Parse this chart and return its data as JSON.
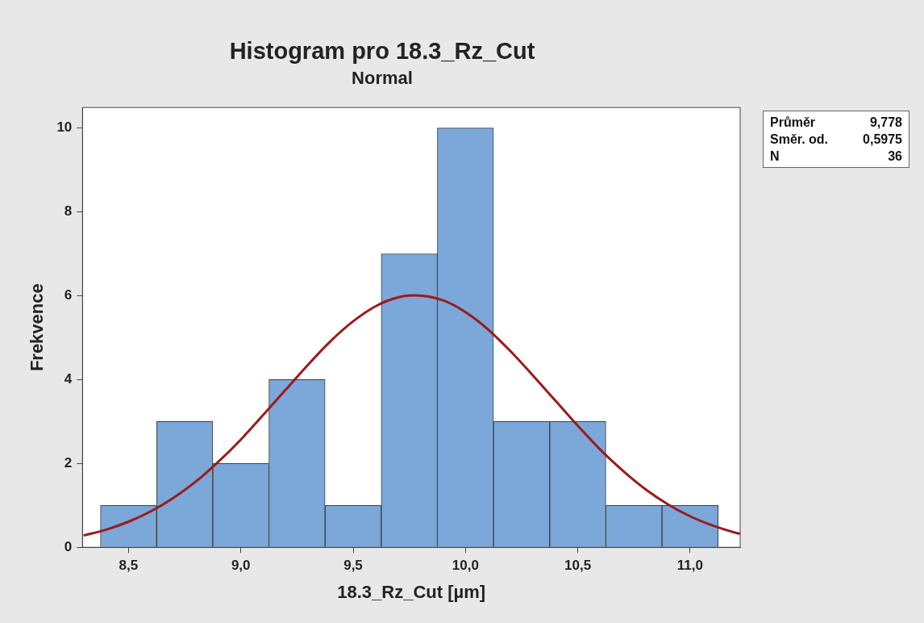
{
  "chart_data": {
    "type": "histogram",
    "title": "Histogram pro 18.3_Rz_Cut",
    "subtitle": "Normal",
    "xlabel": "18.3_Rz_Cut [µm]",
    "ylabel": "Frekvence",
    "bins": [
      8.375,
      8.625,
      8.875,
      9.125,
      9.375,
      9.625,
      9.875,
      10.125,
      10.375,
      10.625,
      10.875,
      11.125
    ],
    "values": [
      1,
      3,
      2,
      4,
      1,
      7,
      10,
      3,
      3,
      1,
      1
    ],
    "color": "#7ba7d9",
    "xlim": [
      8.295,
      11.223
    ],
    "xticks": [
      {
        "value": 8.5,
        "label": "8,5"
      },
      {
        "value": 9.0,
        "label": "9,0"
      },
      {
        "value": 9.5,
        "label": "9,5"
      },
      {
        "value": 10.0,
        "label": "10,0"
      },
      {
        "value": 10.5,
        "label": "10,5"
      },
      {
        "value": 11.0,
        "label": "11,0"
      }
    ],
    "ylim": [
      0,
      10.49
    ],
    "yticks": [
      0,
      2,
      4,
      6,
      8,
      10
    ],
    "grid": false,
    "series": [
      {
        "type": "line",
        "color": "#9c1a1a",
        "x": [
          8.3,
          8.4,
          8.5,
          8.6,
          8.7,
          8.8,
          8.9,
          9.0,
          9.1,
          9.2,
          9.3,
          9.4,
          9.5,
          9.6,
          9.7,
          9.778,
          9.9,
          10.0,
          10.1,
          10.2,
          10.3,
          10.4,
          10.5,
          10.6,
          10.7,
          10.8,
          10.9,
          11.0,
          11.1,
          11.2,
          11.223
        ],
        "values": [
          0.28,
          0.42,
          0.61,
          0.86,
          1.18,
          1.57,
          2.04,
          2.57,
          3.16,
          3.76,
          4.36,
          4.92,
          5.39,
          5.75,
          5.96,
          6.01,
          5.89,
          5.61,
          5.2,
          4.68,
          4.1,
          3.5,
          2.9,
          2.33,
          1.83,
          1.39,
          1.03,
          0.74,
          0.52,
          0.35,
          0.32
        ]
      }
    ],
    "annotations": [
      "Průměr 9,778",
      "Směr. od. 0,5975",
      "N 36"
    ]
  }
}
